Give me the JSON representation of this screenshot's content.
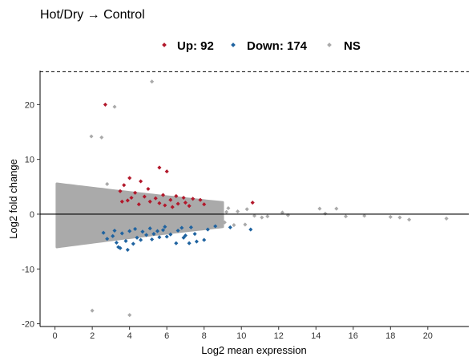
{
  "chart_data": {
    "type": "scatter",
    "title": "Hot/Dry → Control",
    "xlabel": "Log2 mean expression",
    "ylabel": "Log2 fold change",
    "xlim": [
      -0.8,
      22.2
    ],
    "ylim": [
      -20.5,
      26.2
    ],
    "x_ticks": [
      0,
      2,
      4,
      6,
      8,
      10,
      12,
      14,
      16,
      18,
      20
    ],
    "y_ticks": [
      -20,
      -10,
      0,
      10,
      20
    ],
    "grid": false,
    "legend_position": "top",
    "hline_solid": 0,
    "hline_dashed": 26,
    "legend": [
      {
        "name": "Up: 92",
        "color": "#b2182b"
      },
      {
        "name": "Down: 174",
        "color": "#1f63a0"
      },
      {
        "name": "NS",
        "color": "#aaaaaa"
      }
    ],
    "series": [
      {
        "name": "NS",
        "color": "#aaaaaa",
        "points": [
          [
            5.2,
            24.2
          ],
          [
            3.2,
            19.6
          ],
          [
            1.95,
            14.2
          ],
          [
            2.5,
            14.0
          ],
          [
            2.0,
            -17.6
          ],
          [
            4.0,
            -18.4
          ],
          [
            2.8,
            5.5
          ],
          [
            2.2,
            4.3
          ],
          [
            6.8,
            2.0
          ],
          [
            7.6,
            2.2
          ],
          [
            8.2,
            1.9
          ],
          [
            8.8,
            1.3
          ],
          [
            9.3,
            1.1
          ],
          [
            9.8,
            0.5
          ],
          [
            10.3,
            0.9
          ],
          [
            10.7,
            -0.3
          ],
          [
            11.1,
            -0.6
          ],
          [
            11.4,
            -0.4
          ],
          [
            10.2,
            -1.9
          ],
          [
            9.6,
            -2.0
          ],
          [
            9.1,
            -1.5
          ],
          [
            12.2,
            0.3
          ],
          [
            12.5,
            -0.2
          ],
          [
            14.2,
            1.0
          ],
          [
            14.5,
            0.1
          ],
          [
            15.1,
            1.0
          ],
          [
            15.6,
            -0.4
          ],
          [
            16.6,
            -0.3
          ],
          [
            18.0,
            -0.5
          ],
          [
            18.5,
            -0.6
          ],
          [
            19.0,
            -1.0
          ],
          [
            21.0,
            -0.8
          ],
          [
            7.2,
            1.1
          ],
          [
            8.5,
            -1.3
          ],
          [
            9.2,
            0.4
          ]
        ]
      },
      {
        "name": "Up: 92",
        "color": "#b2182b",
        "points": [
          [
            2.7,
            20.0
          ],
          [
            5.6,
            8.5
          ],
          [
            6.0,
            7.8
          ],
          [
            4.0,
            6.6
          ],
          [
            4.6,
            6.0
          ],
          [
            3.7,
            5.3
          ],
          [
            5.0,
            4.6
          ],
          [
            3.5,
            4.2
          ],
          [
            4.3,
            3.9
          ],
          [
            5.8,
            3.5
          ],
          [
            6.5,
            3.3
          ],
          [
            4.8,
            3.2
          ],
          [
            6.9,
            3.0
          ],
          [
            4.1,
            3.0
          ],
          [
            5.4,
            2.9
          ],
          [
            7.4,
            2.8
          ],
          [
            6.2,
            2.6
          ],
          [
            3.9,
            2.5
          ],
          [
            5.1,
            2.3
          ],
          [
            7.0,
            2.1
          ],
          [
            5.6,
            2.0
          ],
          [
            6.6,
            1.9
          ],
          [
            4.5,
            1.8
          ],
          [
            5.9,
            1.6
          ],
          [
            3.6,
            2.3
          ],
          [
            7.8,
            2.6
          ],
          [
            6.3,
            1.3
          ],
          [
            8.0,
            1.8
          ],
          [
            10.6,
            2.1
          ],
          [
            7.2,
            1.5
          ]
        ]
      },
      {
        "name": "Down: 174",
        "color": "#1f63a0",
        "points": [
          [
            3.5,
            -6.2
          ],
          [
            3.9,
            -6.5
          ],
          [
            4.2,
            -5.4
          ],
          [
            3.3,
            -5.2
          ],
          [
            3.8,
            -4.9
          ],
          [
            4.6,
            -4.7
          ],
          [
            5.2,
            -4.6
          ],
          [
            6.5,
            -5.3
          ],
          [
            7.2,
            -5.3
          ],
          [
            7.6,
            -5.0
          ],
          [
            8.0,
            -4.7
          ],
          [
            2.8,
            -4.5
          ],
          [
            4.4,
            -4.3
          ],
          [
            5.6,
            -4.2
          ],
          [
            6.0,
            -4.1
          ],
          [
            6.9,
            -4.3
          ],
          [
            3.1,
            -4.0
          ],
          [
            4.9,
            -3.8
          ],
          [
            5.3,
            -3.6
          ],
          [
            6.2,
            -3.7
          ],
          [
            7.0,
            -3.9
          ],
          [
            7.5,
            -3.6
          ],
          [
            2.6,
            -3.4
          ],
          [
            3.6,
            -3.5
          ],
          [
            4.7,
            -3.2
          ],
          [
            5.5,
            -3.1
          ],
          [
            6.6,
            -3.0
          ],
          [
            5.8,
            -2.9
          ],
          [
            8.2,
            -2.8
          ],
          [
            4.0,
            -3.1
          ],
          [
            3.2,
            -3.0
          ],
          [
            6.8,
            -2.5
          ],
          [
            7.3,
            -2.4
          ],
          [
            5.9,
            -2.3
          ],
          [
            5.1,
            -2.6
          ],
          [
            9.4,
            -2.4
          ],
          [
            10.5,
            -2.8
          ],
          [
            8.6,
            -2.2
          ],
          [
            4.3,
            -2.7
          ],
          [
            3.4,
            -6.0
          ]
        ]
      }
    ]
  }
}
